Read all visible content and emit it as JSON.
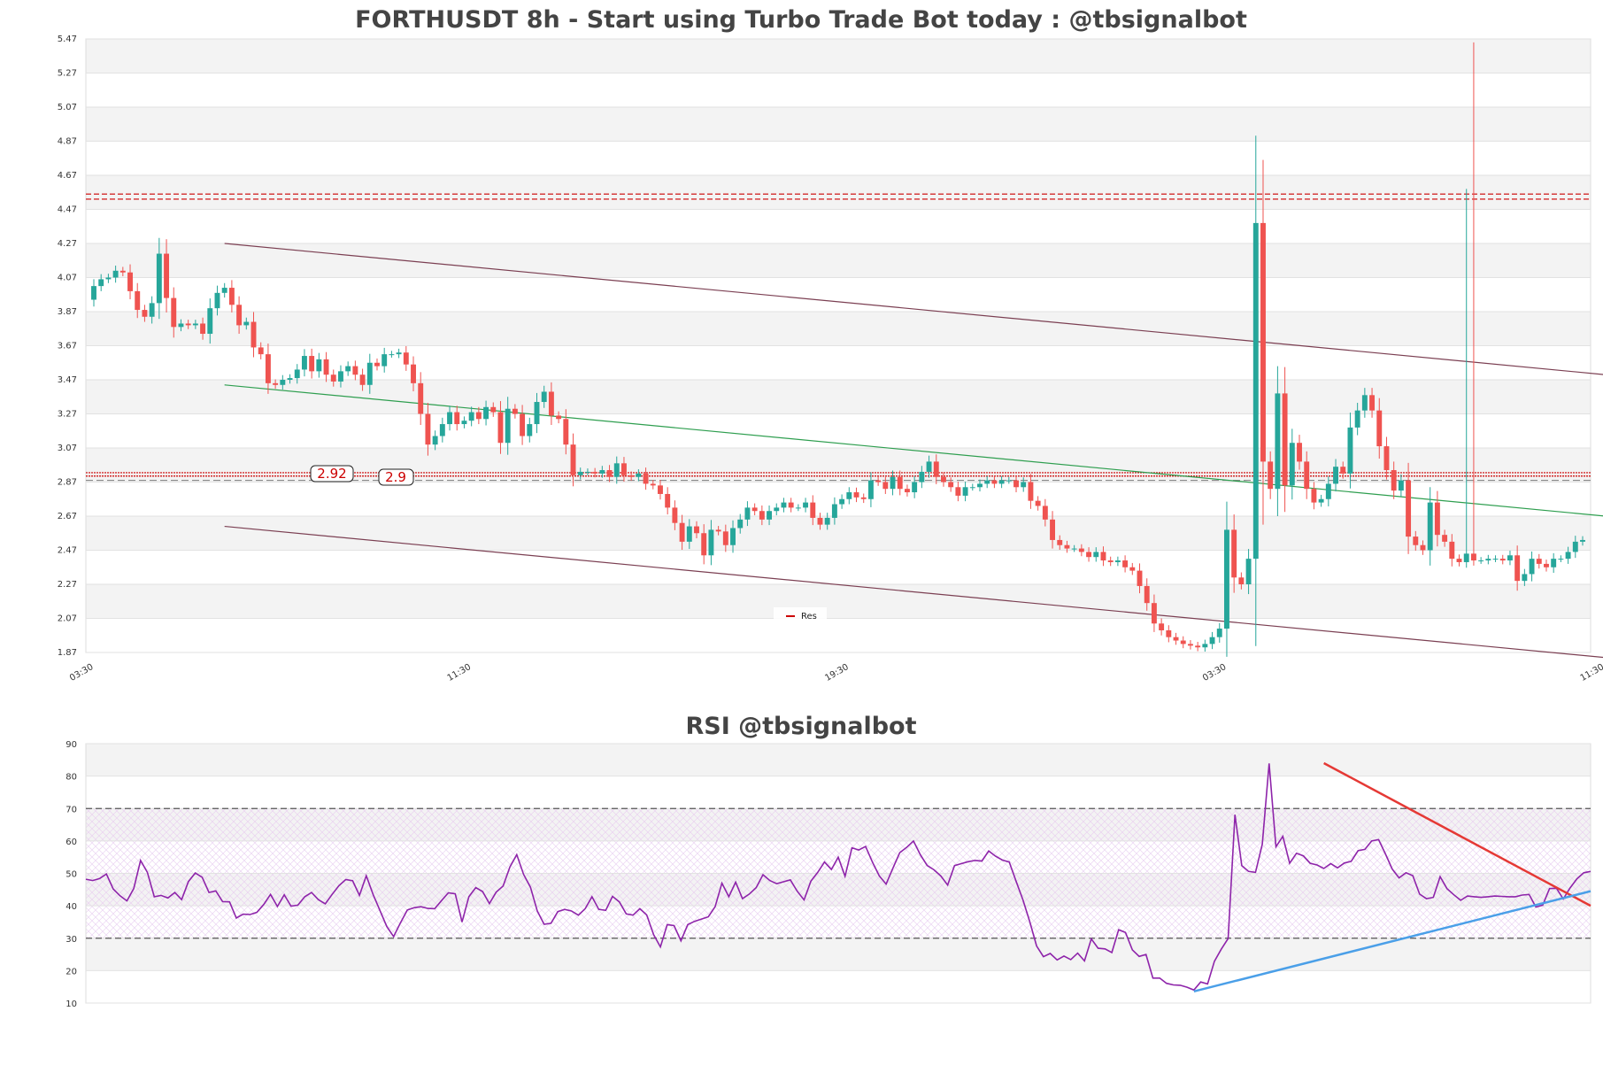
{
  "chart_data": [
    {
      "type": "candlestick",
      "title": "FORTHUSDT 8h - Start using Turbo Trade Bot today : @tbsignalbot",
      "ylim": [
        1.87,
        5.47
      ],
      "y_ticks": [
        "5.47",
        "5.27",
        "5.07",
        "4.87",
        "4.67",
        "4.47",
        "4.27",
        "4.07",
        "3.87",
        "3.67",
        "3.47",
        "3.27",
        "3.07",
        "2.87",
        "2.67",
        "2.47",
        "2.27",
        "2.07",
        "1.87"
      ],
      "x_ticks": [
        {
          "label": "03:30",
          "i": 0
        },
        {
          "label": "11:30",
          "i": 52
        },
        {
          "label": "19:30",
          "i": 104
        },
        {
          "label": "03:30",
          "i": 156
        },
        {
          "label": "11:30",
          "i": 208
        },
        {
          "label": "19:30",
          "i": 260
        }
      ],
      "grid": true,
      "legend": {
        "position": "bottom-center",
        "entries": [
          {
            "label": "Res",
            "color": "#cc0000"
          }
        ]
      },
      "up_color": "#26a69a",
      "down_color": "#ef5350",
      "closes": [
        4.02,
        4.06,
        4.07,
        4.11,
        4.1,
        3.99,
        3.88,
        3.84,
        3.92,
        4.21,
        3.95,
        3.78,
        3.8,
        3.79,
        3.8,
        3.74,
        3.89,
        3.98,
        4.01,
        3.91,
        3.79,
        3.81,
        3.66,
        3.62,
        3.45,
        3.44,
        3.47,
        3.48,
        3.53,
        3.61,
        3.52,
        3.59,
        3.5,
        3.46,
        3.52,
        3.55,
        3.5,
        3.44,
        3.57,
        3.55,
        3.62,
        3.62,
        3.63,
        3.56,
        3.45,
        3.27,
        3.09,
        3.14,
        3.21,
        3.28,
        3.21,
        3.23,
        3.28,
        3.24,
        3.31,
        3.28,
        3.1,
        3.3,
        3.27,
        3.14,
        3.21,
        3.34,
        3.4,
        3.26,
        3.24,
        3.09,
        2.91,
        2.93,
        2.93,
        2.92,
        2.94,
        2.9,
        2.98,
        2.91,
        2.9,
        2.92,
        2.86,
        2.85,
        2.8,
        2.72,
        2.63,
        2.52,
        2.61,
        2.57,
        2.44,
        2.59,
        2.58,
        2.5,
        2.6,
        2.65,
        2.72,
        2.7,
        2.65,
        2.7,
        2.72,
        2.75,
        2.72,
        2.72,
        2.75,
        2.66,
        2.62,
        2.66,
        2.74,
        2.77,
        2.81,
        2.78,
        2.77,
        2.88,
        2.87,
        2.83,
        2.9,
        2.83,
        2.81,
        2.87,
        2.93,
        2.99,
        2.9,
        2.87,
        2.84,
        2.79,
        2.84,
        2.84,
        2.86,
        2.88,
        2.86,
        2.88,
        2.88,
        2.84,
        2.87,
        2.76,
        2.73,
        2.65,
        2.53,
        2.5,
        2.48,
        2.48,
        2.46,
        2.43,
        2.46,
        2.41,
        2.4,
        2.41,
        2.37,
        2.35,
        2.26,
        2.16,
        2.04,
        2.0,
        1.96,
        1.94,
        1.92,
        1.91,
        1.9,
        1.92,
        1.96,
        2.01,
        2.59,
        2.31,
        2.27,
        2.42,
        4.39,
        2.99,
        2.83,
        3.39,
        2.85,
        3.1,
        2.99,
        2.83,
        2.75,
        2.77,
        2.86,
        2.96,
        2.92,
        3.19,
        3.29,
        3.38,
        3.29,
        3.08,
        2.94,
        2.82,
        2.88,
        2.55,
        2.5,
        2.47,
        2.75,
        2.56,
        2.52,
        2.42,
        2.4,
        2.45,
        2.41,
        2.41,
        2.42,
        2.42,
        2.41,
        2.44,
        2.29,
        2.33,
        2.42,
        2.39,
        2.37,
        2.42,
        2.42,
        2.46,
        2.52,
        2.53
      ]
    },
    {
      "type": "line",
      "title": "RSI @tbsignalbot",
      "ylim": [
        10,
        90
      ],
      "y_ticks": [
        "90",
        "80",
        "70",
        "60",
        "50",
        "40",
        "30",
        "20",
        "10"
      ],
      "levels": [
        70,
        30
      ],
      "grid": true,
      "line_color": "#8e24aa",
      "values": [
        48.2,
        47.8,
        48.4,
        49.8,
        45.2,
        43.1,
        41.5,
        45.3,
        54.0,
        50.3,
        42.8,
        43.2,
        42.4,
        44.1,
        41.9,
        47.5,
        50.1,
        48.8,
        44.1,
        44.6,
        41.3,
        41.2,
        36.2,
        37.4,
        37.3,
        38.0,
        40.4,
        43.5,
        39.8,
        43.4,
        39.9,
        40.2,
        42.8,
        44.1,
        41.9,
        40.6,
        43.5,
        46.2,
        48.1,
        47.7,
        43.2,
        49.3,
        43.5,
        38.5,
        33.6,
        30.5,
        34.8,
        38.7,
        39.4,
        39.7,
        39.2,
        39.1,
        41.6,
        44.0,
        43.7,
        35.0,
        42.8,
        45.6,
        44.4,
        40.7,
        44.2,
        46.1,
        52.0,
        55.8,
        49.7,
        45.7,
        38.4,
        34.3,
        34.6,
        38.2,
        38.9,
        38.4,
        37.1,
        39.1,
        42.8,
        38.9,
        38.6,
        42.9,
        41.2,
        37.5,
        37.1,
        39.1,
        37.2,
        31.1,
        27.3,
        34.2,
        33.9,
        29.2,
        34.2,
        35.2,
        35.9,
        36.6,
        39.7,
        47.0,
        42.8,
        47.3,
        42.2,
        43.6,
        45.6,
        49.6,
        47.8,
        46.8,
        47.4,
        48.0,
        44.5,
        41.8,
        47.6,
        50.3,
        53.5,
        51.2,
        55.0,
        49.1,
        57.9,
        57.2,
        58.3,
        53.5,
        49.2,
        46.7,
        51.6,
        56.4,
        58.0,
        60.0,
        55.8,
        52.4,
        51.1,
        49.2,
        46.4,
        52.4,
        53.0,
        53.6,
        54.0,
        53.8,
        56.9,
        55.3,
        54.1,
        53.5,
        47.6,
        41.9,
        35.1,
        27.6,
        24.3,
        25.3,
        23.3,
        24.5,
        23.4,
        25.4,
        23.0,
        29.8,
        26.9,
        26.7,
        25.6,
        32.6,
        31.8,
        26.4,
        24.4,
        25.0,
        17.7,
        17.7,
        16.1,
        15.6,
        15.5,
        14.9,
        14.0,
        16.5,
        15.9,
        22.9,
        26.6,
        29.9,
        68.1,
        52.4,
        50.6,
        50.3,
        59.0,
        83.9,
        58.2,
        61.4,
        53.1,
        56.2,
        55.4,
        53.1,
        52.6,
        51.5,
        53.0,
        51.7,
        53.2,
        53.7,
        57.0,
        57.4,
        60.0,
        60.4,
        56.0,
        51.3,
        48.6,
        50.2,
        49.3,
        43.6,
        42.2,
        42.6,
        49.0,
        45.3,
        43.4,
        41.7,
        43.0,
        42.8,
        42.6,
        42.8,
        43.0,
        42.9,
        42.8,
        42.8,
        43.3,
        43.5,
        39.6,
        40.2,
        45.3,
        45.4,
        42.1,
        45.5,
        48.3,
        50.2,
        50.6
      ]
    }
  ],
  "annotations": {
    "label_a": "2.92",
    "label_b": "2.9"
  }
}
